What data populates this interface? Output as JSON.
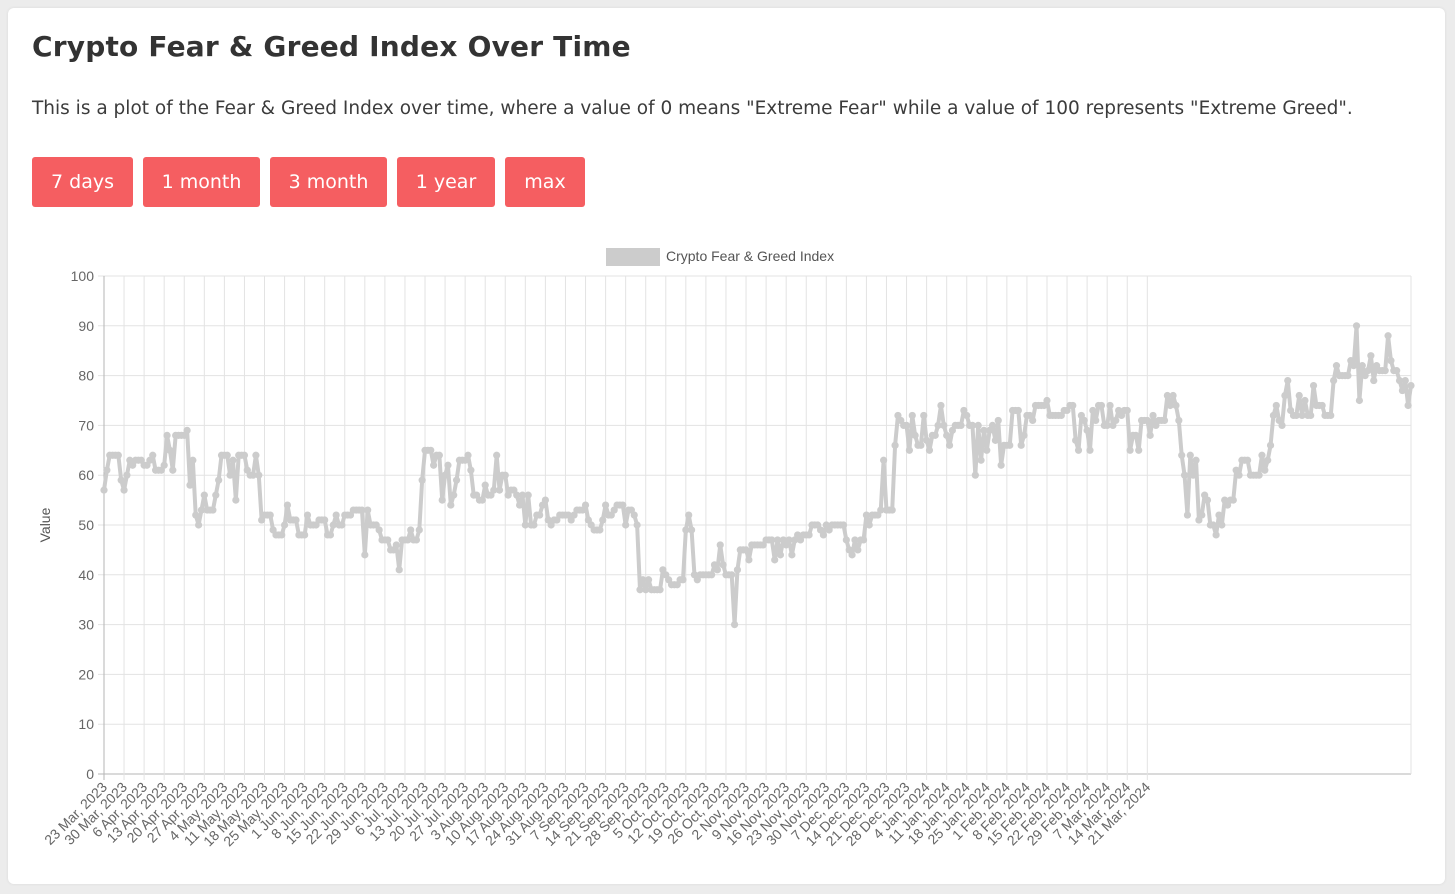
{
  "page": {
    "title": "Crypto Fear & Greed Index Over Time",
    "description": "This is a plot of the Fear & Greed Index over time, where a value of 0 means \"Extreme Fear\" while a value of 100 represents \"Extreme Greed\"."
  },
  "range_buttons": [
    {
      "label": "7 days"
    },
    {
      "label": "1 month"
    },
    {
      "label": "3 month"
    },
    {
      "label": "1 year"
    },
    {
      "label": "max"
    }
  ],
  "colors": {
    "button_bg": "#f55e61",
    "series_line": "#cccccc",
    "grid": "#e3e3e3",
    "axis": "#b5b5b5"
  },
  "chart_data": {
    "type": "line",
    "xlabel": "",
    "ylabel": "Value",
    "ylim": [
      0,
      100
    ],
    "y_ticks": [
      0,
      10,
      20,
      30,
      40,
      50,
      60,
      70,
      80,
      90,
      100
    ],
    "x_tick_labels": [
      "23 Mar, 2023",
      "30 Mar, 2023",
      "6 Apr, 2023",
      "13 Apr, 2023",
      "20 Apr, 2023",
      "27 Apr, 2023",
      "4 May, 2023",
      "11 May, 2023",
      "18 May, 2023",
      "25 May, 2023",
      "1 Jun, 2023",
      "8 Jun, 2023",
      "15 Jun, 2023",
      "22 Jun, 2023",
      "29 Jun, 2023",
      "6 Jul, 2023",
      "13 Jul, 2023",
      "20 Jul, 2023",
      "27 Jul, 2023",
      "3 Aug, 2023",
      "10 Aug, 2023",
      "17 Aug, 2023",
      "24 Aug, 2023",
      "31 Aug, 2023",
      "7 Sep, 2023",
      "14 Sep, 2023",
      "21 Sep, 2023",
      "28 Sep, 2023",
      "5 Oct, 2023",
      "12 Oct, 2023",
      "19 Oct, 2023",
      "26 Oct, 2023",
      "2 Nov, 2023",
      "9 Nov, 2023",
      "16 Nov, 2023",
      "23 Nov, 2023",
      "30 Nov, 2023",
      "7 Dec, 2023",
      "14 Dec, 2023",
      "21 Dec, 2023",
      "28 Dec, 2023",
      "4 Jan, 2024",
      "11 Jan, 2024",
      "18 Jan, 2024",
      "25 Jan, 2024",
      "1 Feb, 2024",
      "8 Feb, 2024",
      "15 Feb, 2024",
      "22 Feb, 2024",
      "29 Feb, 2024",
      "7 Mar, 2024",
      "14 Mar, 2024",
      "21 Mar, 2024"
    ],
    "legend": {
      "position": "top",
      "label": "Crypto Fear & Greed Index"
    },
    "grid": true,
    "series": [
      {
        "name": "Crypto Fear & Greed Index",
        "values": [
          57,
          61,
          64,
          64,
          64,
          64,
          59,
          57,
          60,
          63,
          62,
          63,
          63,
          63,
          62,
          62,
          63,
          64,
          61,
          61,
          61,
          62,
          68,
          65,
          61,
          68,
          68,
          68,
          68,
          69,
          58,
          63,
          52,
          50,
          53,
          56,
          53,
          53,
          53,
          56,
          59,
          64,
          64,
          64,
          60,
          63,
          55,
          64,
          64,
          64,
          61,
          60,
          60,
          64,
          60,
          51,
          52,
          52,
          52,
          49,
          48,
          48,
          48,
          50,
          54,
          51,
          51,
          51,
          48,
          48,
          48,
          52,
          50,
          50,
          50,
          51,
          51,
          51,
          48,
          48,
          50,
          52,
          50,
          50,
          52,
          52,
          52,
          53,
          53,
          53,
          53,
          44,
          53,
          50,
          50,
          50,
          49,
          47,
          47,
          47,
          45,
          45,
          46,
          41,
          47,
          47,
          47,
          49,
          47,
          47,
          49,
          59,
          65,
          65,
          65,
          62,
          64,
          64,
          55,
          60,
          62,
          54,
          56,
          59,
          63,
          63,
          63,
          64,
          61,
          56,
          56,
          55,
          55,
          58,
          56,
          56,
          57,
          64,
          57,
          60,
          60,
          56,
          57,
          57,
          56,
          54,
          56,
          50,
          56,
          50,
          50,
          52,
          52,
          54,
          55,
          51,
          50,
          51,
          51,
          52,
          52,
          52,
          52,
          51,
          52,
          53,
          53,
          53,
          54,
          51,
          50,
          49,
          49,
          49,
          51,
          54,
          52,
          52,
          53,
          54,
          54,
          54,
          50,
          53,
          53,
          52,
          50,
          37,
          39,
          37,
          39,
          37,
          37,
          37,
          37,
          41,
          40,
          39,
          38,
          38,
          38,
          39,
          39,
          49,
          52,
          49,
          40,
          39,
          40,
          40,
          40,
          40,
          40,
          42,
          41,
          46,
          42,
          40,
          40,
          40,
          30,
          41,
          45,
          45,
          45,
          43,
          46,
          46,
          46,
          46,
          46,
          47,
          47,
          47,
          43,
          47,
          44,
          47,
          46,
          47,
          44,
          47,
          48,
          47,
          48,
          48,
          48,
          50,
          50,
          50,
          49,
          48,
          50,
          49,
          50,
          50,
          50,
          50,
          50,
          47,
          45,
          44,
          47,
          45,
          47,
          47,
          52,
          50,
          52,
          52,
          52,
          53,
          63,
          53,
          53,
          53,
          66,
          72,
          71,
          70,
          70,
          65,
          72,
          68,
          66,
          66,
          72,
          67,
          65,
          68,
          68,
          70,
          74,
          70,
          68,
          66,
          69,
          70,
          70,
          70,
          73,
          72,
          70,
          70,
          60,
          70,
          63,
          69,
          65,
          69,
          70,
          67,
          71,
          62,
          66,
          66,
          66,
          73,
          73,
          73,
          66,
          68,
          72,
          72,
          71,
          74,
          74,
          74,
          74,
          75,
          72,
          72,
          72,
          72,
          72,
          73,
          73,
          74,
          74,
          67,
          65,
          72,
          71,
          69,
          65,
          73,
          71,
          74,
          74,
          70,
          70,
          74,
          70,
          71,
          73,
          72,
          73,
          73,
          65,
          68,
          68,
          65,
          71,
          71,
          71,
          68,
          72,
          70,
          71,
          71,
          71,
          76,
          74,
          76,
          74,
          71,
          64,
          60,
          52,
          64,
          60,
          63,
          51,
          52,
          56,
          55,
          50,
          50,
          48,
          52,
          50,
          55,
          54,
          55,
          55,
          61,
          60,
          63,
          63,
          63,
          60,
          60,
          60,
          60,
          64,
          61,
          63,
          66,
          72,
          74,
          71,
          70,
          76,
          79,
          73,
          72,
          72,
          76,
          72,
          75,
          72,
          72,
          78,
          74,
          74,
          74,
          72,
          72,
          72,
          79,
          82,
          80,
          80,
          80,
          80,
          83,
          82,
          90,
          75,
          82,
          80,
          81,
          84,
          79,
          82,
          81,
          81,
          81,
          88,
          83,
          81,
          81,
          79,
          77,
          79,
          74,
          78
        ]
      }
    ]
  }
}
